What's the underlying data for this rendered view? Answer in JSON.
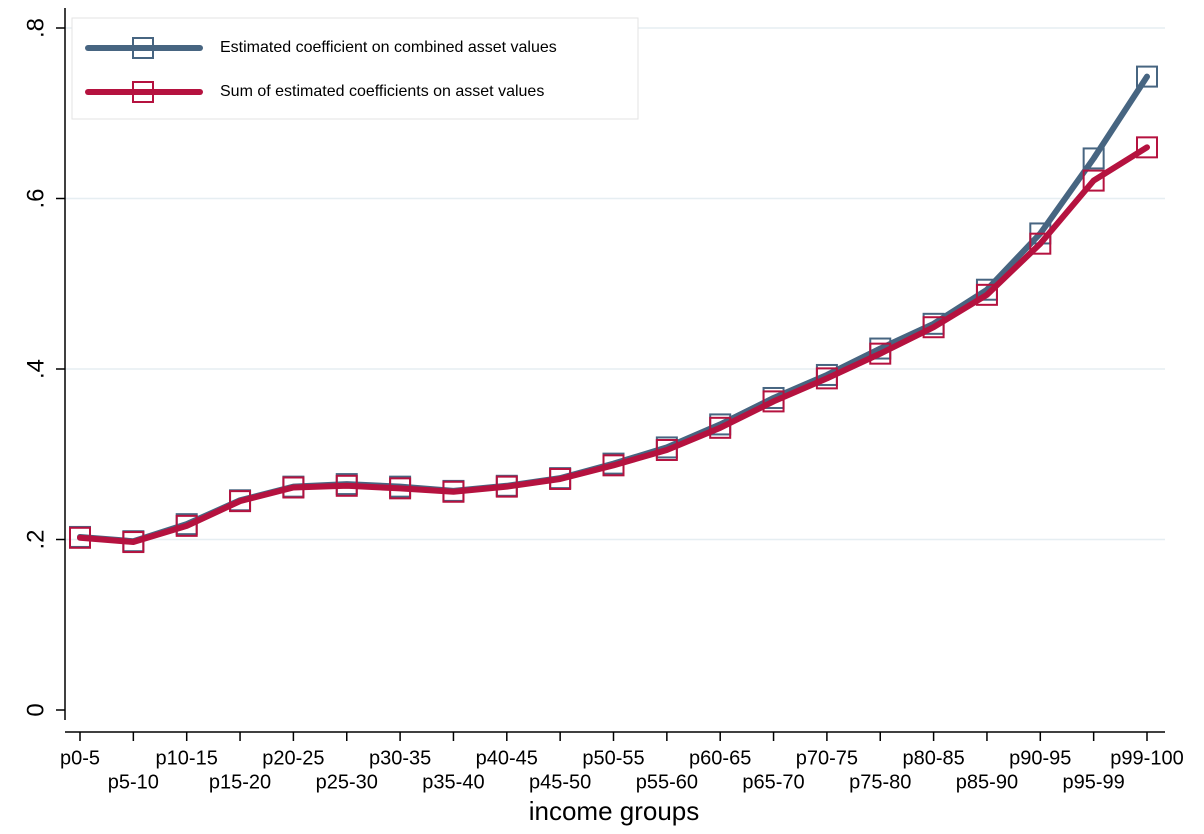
{
  "chart_data": {
    "type": "line",
    "x_label": "income groups",
    "categories": [
      "p0-5",
      "p5-10",
      "p10-15",
      "p15-20",
      "p20-25",
      "p25-30",
      "p30-35",
      "p35-40",
      "p40-45",
      "p45-50",
      "p50-55",
      "p55-60",
      "p60-65",
      "p65-70",
      "p70-75",
      "p75-80",
      "p80-85",
      "p85-90",
      "p90-95",
      "p95-99",
      "p99-100"
    ],
    "series": [
      {
        "name": "Estimated coefficient on combined asset values",
        "color": "#476581",
        "values": [
          0.203,
          0.198,
          0.218,
          0.246,
          0.262,
          0.265,
          0.262,
          0.257,
          0.263,
          0.272,
          0.289,
          0.308,
          0.335,
          0.366,
          0.393,
          0.424,
          0.453,
          0.493,
          0.559,
          0.647,
          0.743
        ]
      },
      {
        "name": "Sum of estimated coefficients on asset values",
        "color": "#b5123f",
        "values": [
          0.202,
          0.197,
          0.216,
          0.245,
          0.261,
          0.263,
          0.26,
          0.256,
          0.262,
          0.271,
          0.287,
          0.305,
          0.331,
          0.362,
          0.389,
          0.418,
          0.449,
          0.487,
          0.547,
          0.621,
          0.66
        ]
      }
    ],
    "ylim": [
      0,
      0.8
    ],
    "yticks": [
      0,
      {
        "value": 0.2,
        "label": ".2"
      },
      {
        "value": 0.4,
        "label": ".4"
      },
      {
        "value": 0.6,
        "label": ".6"
      },
      {
        "value": 0.8,
        "label": ".8"
      }
    ],
    "grid": true,
    "legend": "top-left",
    "marker": "hollow-square"
  }
}
